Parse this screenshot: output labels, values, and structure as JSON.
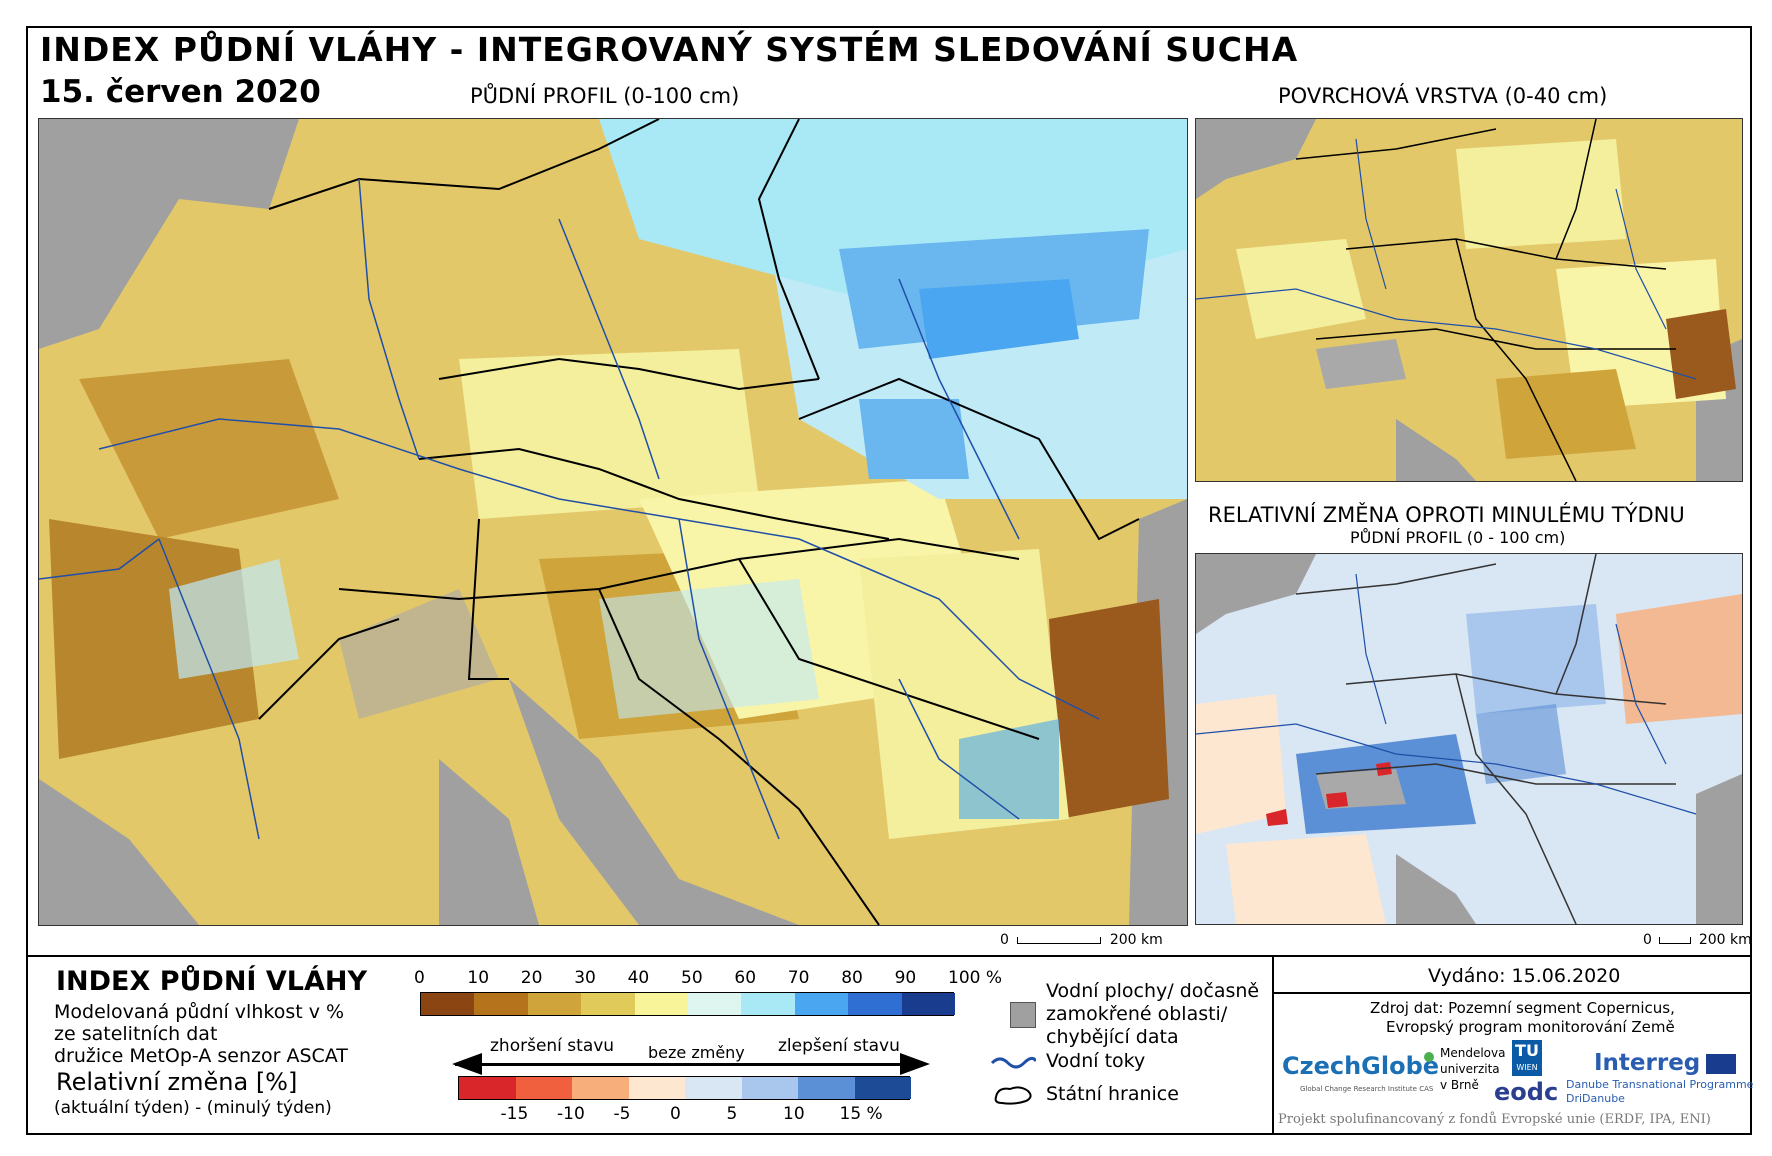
{
  "header": {
    "title": "INDEX PŮDNÍ VLÁHY - INTEGROVANÝ SYSTÉM SLEDOVÁNÍ SUCHA",
    "date": "15. červen 2020"
  },
  "maps": {
    "main_label": "PŮDNÍ PROFIL (0-100 cm)",
    "surface_label": "POVRCHOVÁ VRSTVA (0-40 cm)",
    "change_label": "RELATIVNÍ ZMĚNA OPROTI MINULÉMU TÝDNU",
    "change_sublabel": "PŮDNÍ PROFIL (0 - 100 cm)",
    "scale_zero": "0",
    "scale_main": "200 km",
    "scale_small": "200 km"
  },
  "legend": {
    "index_title": "INDEX PŮDNÍ VLÁHY",
    "index_desc_1": "Modelovaná půdní vlhkost v %",
    "index_desc_2": "ze satelitních dat",
    "index_desc_3": "družice MetOp-A senzor ASCAT",
    "change_title": "Relativní změna [%]",
    "change_desc": "(aktuální týden) - (minulý týden)",
    "index_ticks": [
      "0",
      "10",
      "20",
      "30",
      "40",
      "50",
      "60",
      "70",
      "80",
      "90",
      "100 %"
    ],
    "index_colors": [
      "#8b4513",
      "#b5731c",
      "#cfa43a",
      "#dfca5a",
      "#f8f49a",
      "#dff6f0",
      "#a9e8f5",
      "#4aa6f0",
      "#2f6fd3",
      "#1a3c8f"
    ],
    "worse_label": "zhoršení stavu",
    "nochange_label": "beze změny",
    "better_label": "zlepšení stavu",
    "change_ticks": [
      "-15",
      "-10",
      "-5",
      "0",
      "5",
      "10",
      "15 %"
    ],
    "change_colors": [
      "#d8262b",
      "#f0603e",
      "#f8ae7a",
      "#fde7d0",
      "#d9e6f3",
      "#a9c6ec",
      "#5b8fd6",
      "#1d4b95"
    ],
    "water_label_1": "Vodní plochy/ dočasně",
    "water_label_2": "zamokřené oblasti/",
    "water_label_3": "chybějící data",
    "rivers_label": "Vodní toky",
    "borders_label": "Státní hranice"
  },
  "footer": {
    "issued": "Vydáno: 15.06.2020",
    "source_1": "Zdroj dat: Pozemní segment Copernicus,",
    "source_2": "Evropský program monitorování Země",
    "czechglobe": "CzechGlobe",
    "czechglobe_sub": "Global Change Research Institute CAS",
    "mendel_1": "Mendelova",
    "mendel_2": "univerzita",
    "mendel_3": "v Brně",
    "tu": "TU",
    "tu_sub": "WIEN",
    "eodc": "eodc",
    "interreg": "Interreg",
    "interreg_sub_1": "Danube Transnational Programme",
    "interreg_sub_2": "DriDanube",
    "funding": "Projekt spolufinancovaný z fondů Evropské unie (ERDF, IPA, ENI)"
  }
}
